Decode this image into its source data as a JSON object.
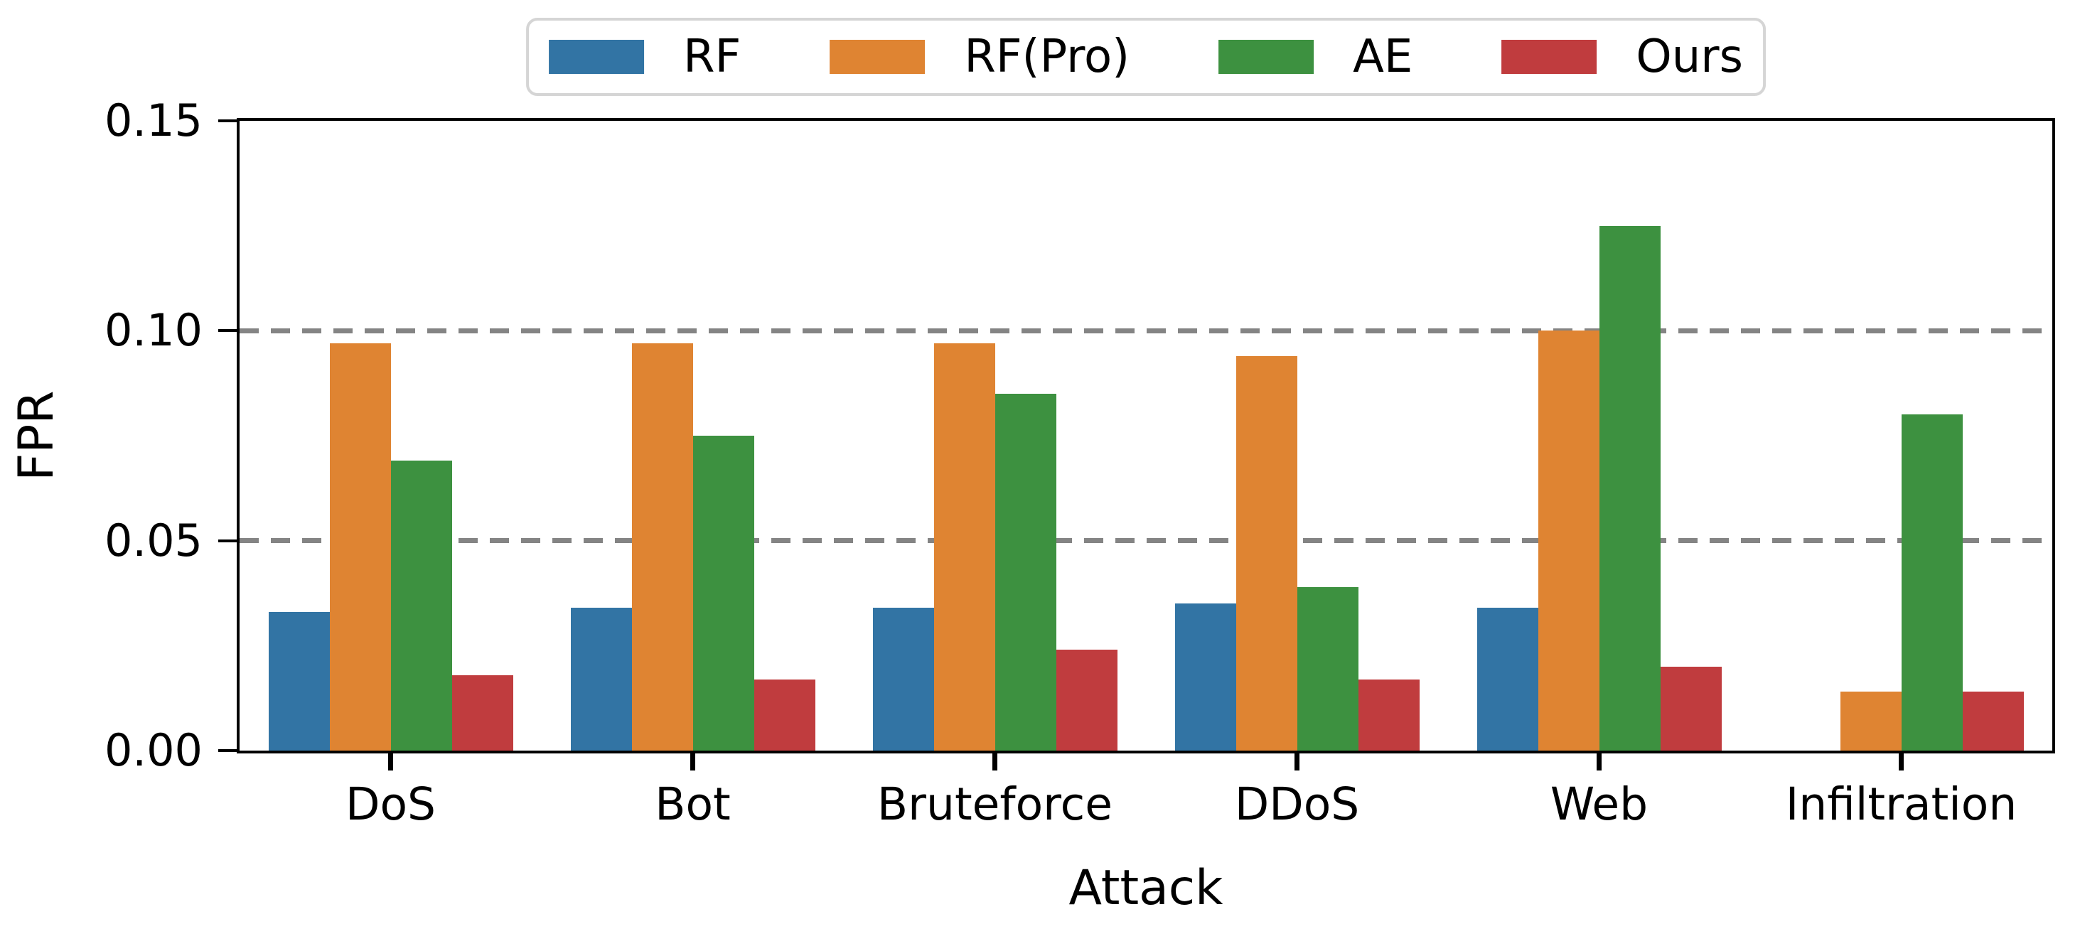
{
  "figure": {
    "background": "#ffffff",
    "axis_color": "#000000",
    "text_color": "#000000"
  },
  "chart_data": {
    "type": "bar",
    "title": "",
    "xlabel": "Attack",
    "ylabel": "FPR",
    "categories": [
      "DoS",
      "Bot",
      "Bruteforce",
      "DDoS",
      "Web",
      "Infiltration"
    ],
    "series": [
      {
        "name": "RF",
        "color": "#3274a4",
        "values": [
          0.033,
          0.034,
          0.034,
          0.035,
          0.034,
          0.0
        ]
      },
      {
        "name": "RF(Pro)",
        "color": "#df8432",
        "values": [
          0.097,
          0.097,
          0.097,
          0.094,
          0.1,
          0.014
        ]
      },
      {
        "name": "AE",
        "color": "#3d9140",
        "values": [
          0.069,
          0.075,
          0.085,
          0.039,
          0.125,
          0.08
        ]
      },
      {
        "name": "Ours",
        "color": "#c03c3e",
        "values": [
          0.018,
          0.017,
          0.024,
          0.017,
          0.02,
          0.014
        ]
      }
    ],
    "ylim": [
      0,
      0.15
    ],
    "yticks": [
      {
        "value": 0.0,
        "label": "0.00"
      },
      {
        "value": 0.05,
        "label": "0.05"
      },
      {
        "value": 0.1,
        "label": "0.10"
      },
      {
        "value": 0.15,
        "label": "0.15"
      }
    ],
    "grid": {
      "values": [
        0.05,
        0.1
      ],
      "style": "dashed",
      "orientation": "horizontal",
      "color": "#848484"
    },
    "legend": {
      "position": "top center",
      "border_color": "#d5d5d5",
      "entries": [
        "RF",
        "RF(Pro)",
        "AE",
        "Ours"
      ]
    }
  }
}
